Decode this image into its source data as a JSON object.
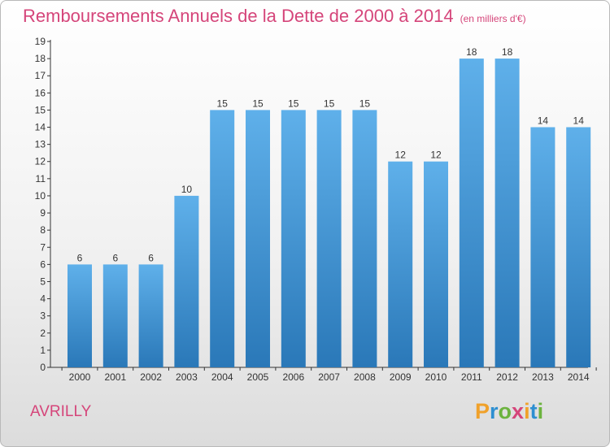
{
  "header": {
    "title": "Remboursements Annuels de la Dette de 2000 à 2014",
    "unit": "(en milliers d'€)"
  },
  "footer": {
    "commune": "AVRILLY",
    "logo_letters": [
      "P",
      "r",
      "o",
      "x",
      "i",
      "t",
      "i"
    ],
    "logo_colors": [
      "#f0a12a",
      "#2e8fd1",
      "#6cb33f",
      "#d5457a",
      "#f0a12a",
      "#2e8fd1",
      "#6cb33f"
    ]
  },
  "colors": {
    "bar_top": "#5fb0ea",
    "bar_bottom": "#2a78b8",
    "axis": "#333333",
    "grid": "#d0d0d0",
    "title": "#d5457a"
  },
  "chart_data": {
    "type": "bar",
    "title": "Remboursements Annuels de la Dette de 2000 à 2014",
    "xlabel": "",
    "ylabel": "",
    "categories": [
      "2000",
      "2001",
      "2002",
      "2003",
      "2004",
      "2005",
      "2006",
      "2007",
      "2008",
      "2009",
      "2010",
      "2011",
      "2012",
      "2013",
      "2014"
    ],
    "values": [
      6,
      6,
      6,
      10,
      15,
      15,
      15,
      15,
      15,
      12,
      12,
      18,
      18,
      14,
      14
    ],
    "ylim": [
      0,
      19
    ],
    "yticks": [
      0,
      1,
      2,
      3,
      4,
      5,
      6,
      7,
      8,
      9,
      10,
      11,
      12,
      13,
      14,
      15,
      16,
      17,
      18,
      19
    ],
    "grid": false,
    "legend": "none"
  }
}
